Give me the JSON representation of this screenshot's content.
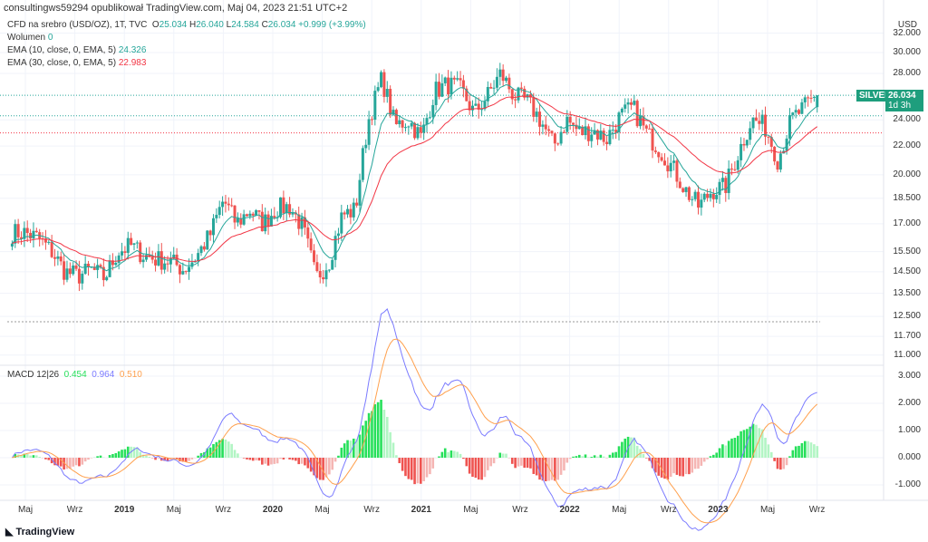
{
  "header": {
    "publisher": "consultingws59294 opublikował TradingView.com, Maj 04, 2023 21:51 UTC+2"
  },
  "legend": {
    "symbol": "CFD na srebro (USD/OZ), 1T, TVC",
    "o_label": "O",
    "open": "25.034",
    "h_label": "H",
    "high": "26.040",
    "l_label": "L",
    "low": "24.584",
    "c_label": "C",
    "close": "26.034",
    "change": "+0.999 (+3.99%)",
    "volume_label": "Wolumen",
    "volume": "0",
    "ema10_label": "EMA (10, close, 0, EMA, 5)",
    "ema10": "24.326",
    "ema30_label": "EMA (30, close, 0, EMA, 5)",
    "ema30": "22.983",
    "macd_label": "MACD 12|26",
    "macd_hist": "0.454",
    "macd": "0.964",
    "macd_signal": "0.510"
  },
  "price_axis": {
    "currency": "USD",
    "ticks": [
      "32.000",
      "30.000",
      "28.000",
      "24.000",
      "22.000",
      "20.000",
      "18.500",
      "17.000",
      "15.500",
      "14.500",
      "13.500",
      "12.500",
      "11.700",
      "11.000"
    ],
    "tag_symbol": "SILVER",
    "tag_price": "26.034",
    "tag_countdown": "1d 3h"
  },
  "macd_axis": {
    "ticks": [
      "3.000",
      "2.000",
      "1.000",
      "0.000",
      "-1.000"
    ]
  },
  "time_axis": [
    "Maj",
    "Wrz",
    "2019",
    "Maj",
    "Wrz",
    "2020",
    "Maj",
    "Wrz",
    "2021",
    "Maj",
    "Wrz",
    "2022",
    "Maj",
    "Wrz",
    "2023",
    "Maj",
    "Wrz"
  ],
  "footer": {
    "brand": "TradingView"
  },
  "colors": {
    "up": "#26a69a",
    "down": "#ef5350",
    "ema10": "#26a69a",
    "ema30": "#f23645",
    "macd": "#7b7bff",
    "signal": "#ffa04d",
    "hist_up": "#26e05a",
    "hist_down": "#ef5350"
  },
  "chart_data": {
    "type": "candlestick",
    "title": "CFD na srebro (USD/OZ), 1T, TVC",
    "interval": "1W",
    "start": "2018-04",
    "monthly_close_approx": [
      16.5,
      16.5,
      16.2,
      15.5,
      14.5,
      14.3,
      14.6,
      14.2,
      15.5,
      15.8,
      15.3,
      15.1,
      15.0,
      14.6,
      15.3,
      16.4,
      18.4,
      17.0,
      17.8,
      17.0,
      17.9,
      18.0,
      16.8,
      14.2,
      15.0,
      17.5,
      17.8,
      24.0,
      27.5,
      23.5,
      24.0,
      22.6,
      26.4,
      27.0,
      26.5,
      24.5,
      26.0,
      28.0,
      26.0,
      25.5,
      24.0,
      22.0,
      24.0,
      23.0,
      23.2,
      22.5,
      24.2,
      25.0,
      23.0,
      21.8,
      20.5,
      19.0,
      18.0,
      19.0,
      19.2,
      21.5,
      24.0,
      23.5,
      21.0,
      24.0,
      25.0,
      26.034
    ],
    "ylabel": "USD",
    "yscale": "log",
    "ylim": [
      11,
      32
    ],
    "macd_ylim": [
      -1.3,
      3.2
    ],
    "last": {
      "open": 25.034,
      "high": 26.04,
      "low": 24.584,
      "close": 26.034,
      "ema10": 24.326,
      "ema30": 22.983,
      "macd": 0.964,
      "signal": 0.51,
      "hist": 0.454
    }
  }
}
